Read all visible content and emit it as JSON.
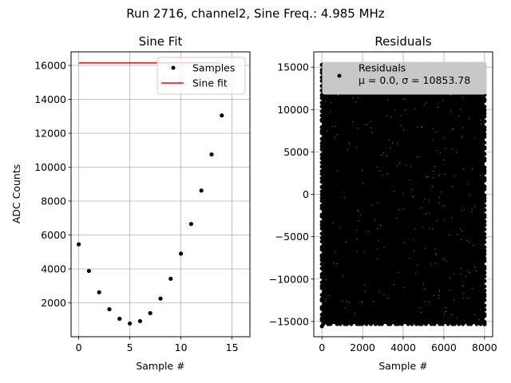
{
  "suptitle": "Run 2716, channel2, Sine Freq.: 4.985 MHz",
  "chart_data": [
    {
      "type": "scatter",
      "title": "Sine Fit",
      "xlabel": "Sample #",
      "ylabel": "ADC Counts",
      "xlim": [
        -0.75,
        16.75
      ],
      "ylim": [
        0,
        16800
      ],
      "xticks": [
        0,
        5,
        10,
        15
      ],
      "yticks": [
        2000,
        4000,
        6000,
        8000,
        10000,
        12000,
        14000,
        16000
      ],
      "grid": true,
      "legend": {
        "placement": "top-right",
        "entries": [
          "Samples",
          "Sine fit"
        ]
      },
      "series": [
        {
          "name": "Samples",
          "style": "points",
          "color": "#000000",
          "x": [
            0,
            1,
            2,
            3,
            4,
            5,
            6,
            7,
            8,
            9,
            10,
            11,
            12,
            13,
            14
          ],
          "y": [
            5450,
            3880,
            2620,
            1620,
            1060,
            780,
            920,
            1390,
            2250,
            3420,
            4900,
            6650,
            8620,
            10750,
            13050
          ]
        },
        {
          "name": "Sine fit",
          "style": "line",
          "color": "#ff0000",
          "x": [
            0,
            14
          ],
          "y": [
            16150,
            16150
          ]
        }
      ]
    },
    {
      "type": "scatter",
      "title": "Residuals",
      "xlabel": "Sample #",
      "ylabel": "",
      "xlim": [
        -400,
        8400
      ],
      "ylim": [
        -16800,
        16800
      ],
      "xticks": [
        0,
        2000,
        4000,
        6000,
        8000
      ],
      "yticks": [
        -15000,
        -10000,
        -5000,
        0,
        5000,
        10000,
        15000
      ],
      "grid": true,
      "legend": {
        "placement": "top-right",
        "entries": [
          "Residuals",
          "μ = 0.0, σ = 10853.78"
        ]
      },
      "series": [
        {
          "name": "Residuals",
          "style": "dense-points",
          "color": "#000000",
          "x_range": [
            0,
            8000
          ],
          "y_range": [
            -15300,
            15300
          ],
          "mu": 0.0,
          "sigma": 10853.78
        }
      ]
    }
  ]
}
